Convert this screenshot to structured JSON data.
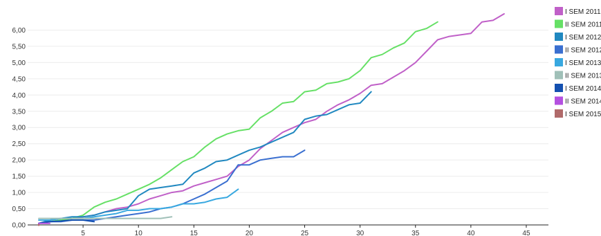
{
  "chart_data": {
    "type": "line",
    "title": "",
    "xlabel": "",
    "ylabel": "",
    "xlim": [
      0,
      47
    ],
    "ylim": [
      0,
      6.5
    ],
    "x_ticks": [
      5,
      10,
      15,
      20,
      25,
      30,
      35,
      40,
      45
    ],
    "y_ticks": [
      "0,00",
      "0,50",
      "1,00",
      "1,50",
      "2,00",
      "2,50",
      "3,00",
      "3,50",
      "4,00",
      "4,50",
      "5,00",
      "5,50",
      "6,00"
    ],
    "y_tick_values": [
      0,
      0.5,
      1,
      1.5,
      2,
      2.5,
      3,
      3.5,
      4,
      4.5,
      5,
      5.5,
      6
    ],
    "grid": true,
    "legend_position": "top-right",
    "series": [
      {
        "name": "I SEM 2011",
        "color": "#c060c8",
        "x": [
          1,
          2,
          3,
          4,
          5,
          6,
          7,
          8,
          9,
          10,
          11,
          12,
          13,
          14,
          15,
          16,
          17,
          18,
          19,
          20,
          21,
          22,
          23,
          24,
          25,
          26,
          27,
          28,
          29,
          30,
          31,
          32,
          33,
          34,
          35,
          36,
          37,
          38,
          39,
          40,
          41,
          42,
          43
        ],
        "y": [
          0.05,
          0.1,
          0.15,
          0.2,
          0.25,
          0.3,
          0.4,
          0.5,
          0.55,
          0.65,
          0.8,
          0.9,
          1.0,
          1.05,
          1.2,
          1.3,
          1.4,
          1.5,
          1.8,
          2.0,
          2.35,
          2.6,
          2.85,
          3.0,
          3.15,
          3.25,
          3.5,
          3.7,
          3.85,
          4.05,
          4.3,
          4.35,
          4.55,
          4.75,
          5.0,
          5.35,
          5.7,
          5.8,
          5.85,
          5.9,
          6.25,
          6.3,
          6.5
        ]
      },
      {
        "name": "II SEM 2011",
        "color": "#66e066",
        "x": [
          1,
          2,
          3,
          4,
          5,
          6,
          7,
          8,
          9,
          10,
          11,
          12,
          13,
          14,
          15,
          16,
          17,
          18,
          19,
          20,
          21,
          22,
          23,
          24,
          25,
          26,
          27,
          28,
          29,
          30,
          31,
          32,
          33,
          34,
          35,
          36,
          37
        ],
        "y": [
          0.05,
          0.1,
          0.15,
          0.2,
          0.3,
          0.55,
          0.7,
          0.8,
          0.95,
          1.1,
          1.25,
          1.45,
          1.7,
          1.95,
          2.1,
          2.4,
          2.65,
          2.8,
          2.9,
          2.95,
          3.3,
          3.5,
          3.75,
          3.8,
          4.1,
          4.15,
          4.35,
          4.4,
          4.5,
          4.75,
          5.15,
          5.25,
          5.45,
          5.6,
          5.95,
          6.05,
          6.25
        ]
      },
      {
        "name": "I SEM 2012",
        "color": "#2088c0",
        "x": [
          1,
          2,
          3,
          4,
          5,
          6,
          7,
          8,
          9,
          10,
          11,
          12,
          13,
          14,
          15,
          16,
          17,
          18,
          19,
          20,
          21,
          22,
          23,
          24,
          25,
          26,
          27,
          28,
          29,
          30,
          31
        ],
        "y": [
          0.05,
          0.15,
          0.2,
          0.25,
          0.25,
          0.3,
          0.4,
          0.45,
          0.5,
          0.9,
          1.1,
          1.15,
          1.2,
          1.25,
          1.6,
          1.75,
          1.95,
          2.0,
          2.15,
          2.3,
          2.4,
          2.55,
          2.7,
          2.85,
          3.25,
          3.35,
          3.4,
          3.55,
          3.7,
          3.75,
          4.1
        ]
      },
      {
        "name": "II SEM 2012",
        "color": "#3a6fd0",
        "x": [
          1,
          2,
          3,
          4,
          5,
          6,
          7,
          8,
          9,
          10,
          11,
          12,
          13,
          14,
          15,
          16,
          17,
          18,
          19,
          20,
          21,
          22,
          23,
          24,
          25
        ],
        "y": [
          0.05,
          0.1,
          0.1,
          0.15,
          0.15,
          0.15,
          0.2,
          0.25,
          0.3,
          0.35,
          0.4,
          0.5,
          0.55,
          0.65,
          0.8,
          0.95,
          1.15,
          1.35,
          1.85,
          1.85,
          2.0,
          2.05,
          2.1,
          2.1,
          2.3
        ]
      },
      {
        "name": "I SEM 2013",
        "color": "#38a8e0",
        "x": [
          1,
          2,
          3,
          4,
          5,
          6,
          7,
          8,
          9,
          10,
          11,
          12,
          13,
          14,
          15,
          16,
          17,
          18,
          19
        ],
        "y": [
          0.15,
          0.15,
          0.2,
          0.2,
          0.2,
          0.25,
          0.3,
          0.35,
          0.45,
          0.45,
          0.5,
          0.5,
          0.55,
          0.65,
          0.65,
          0.7,
          0.8,
          0.85,
          1.1
        ]
      },
      {
        "name": "II SEM 2013",
        "color": "#a0c0b8",
        "x": [
          1,
          2,
          3,
          4,
          5,
          6,
          7,
          8,
          9,
          10,
          11,
          12,
          13
        ],
        "y": [
          0.2,
          0.2,
          0.2,
          0.2,
          0.2,
          0.2,
          0.2,
          0.2,
          0.2,
          0.2,
          0.2,
          0.2,
          0.25
        ]
      },
      {
        "name": "I SEM 2014",
        "color": "#1450b0",
        "x": [
          1,
          2,
          3,
          4,
          5,
          6
        ],
        "y": [
          0.05,
          0.1,
          0.12,
          0.15,
          0.15,
          0.1
        ]
      },
      {
        "name": "II SEM 2014",
        "color": "#b450e0",
        "x": [
          1,
          2
        ],
        "y": [
          0.05,
          0.05
        ]
      },
      {
        "name": "I SEM 2015",
        "color": "#b06a6a",
        "x": [
          1
        ],
        "y": [
          0.0
        ]
      }
    ]
  }
}
